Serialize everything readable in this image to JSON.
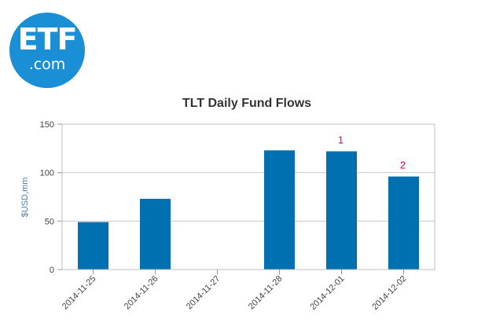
{
  "logo": {
    "main": "ETF",
    "sub": ".com"
  },
  "chart_data": {
    "type": "bar",
    "title": "TLT Daily Fund Flows",
    "xlabel": "",
    "ylabel": "$USD,mm",
    "categories": [
      "2014-11-25",
      "2014-11-26",
      "2014-11-27",
      "2014-11-28",
      "2014-12-01",
      "2014-12-02"
    ],
    "values": [
      49,
      73,
      0,
      123,
      122,
      96
    ],
    "ylim": [
      0,
      150
    ],
    "yticks": [
      0,
      50,
      100,
      150
    ],
    "grid": true,
    "bar_color": "#0070b0",
    "annotations": [
      {
        "category": "2014-12-01",
        "text": "1"
      },
      {
        "category": "2014-12-02",
        "text": "2"
      }
    ],
    "annotation_color": "#cc0066"
  }
}
